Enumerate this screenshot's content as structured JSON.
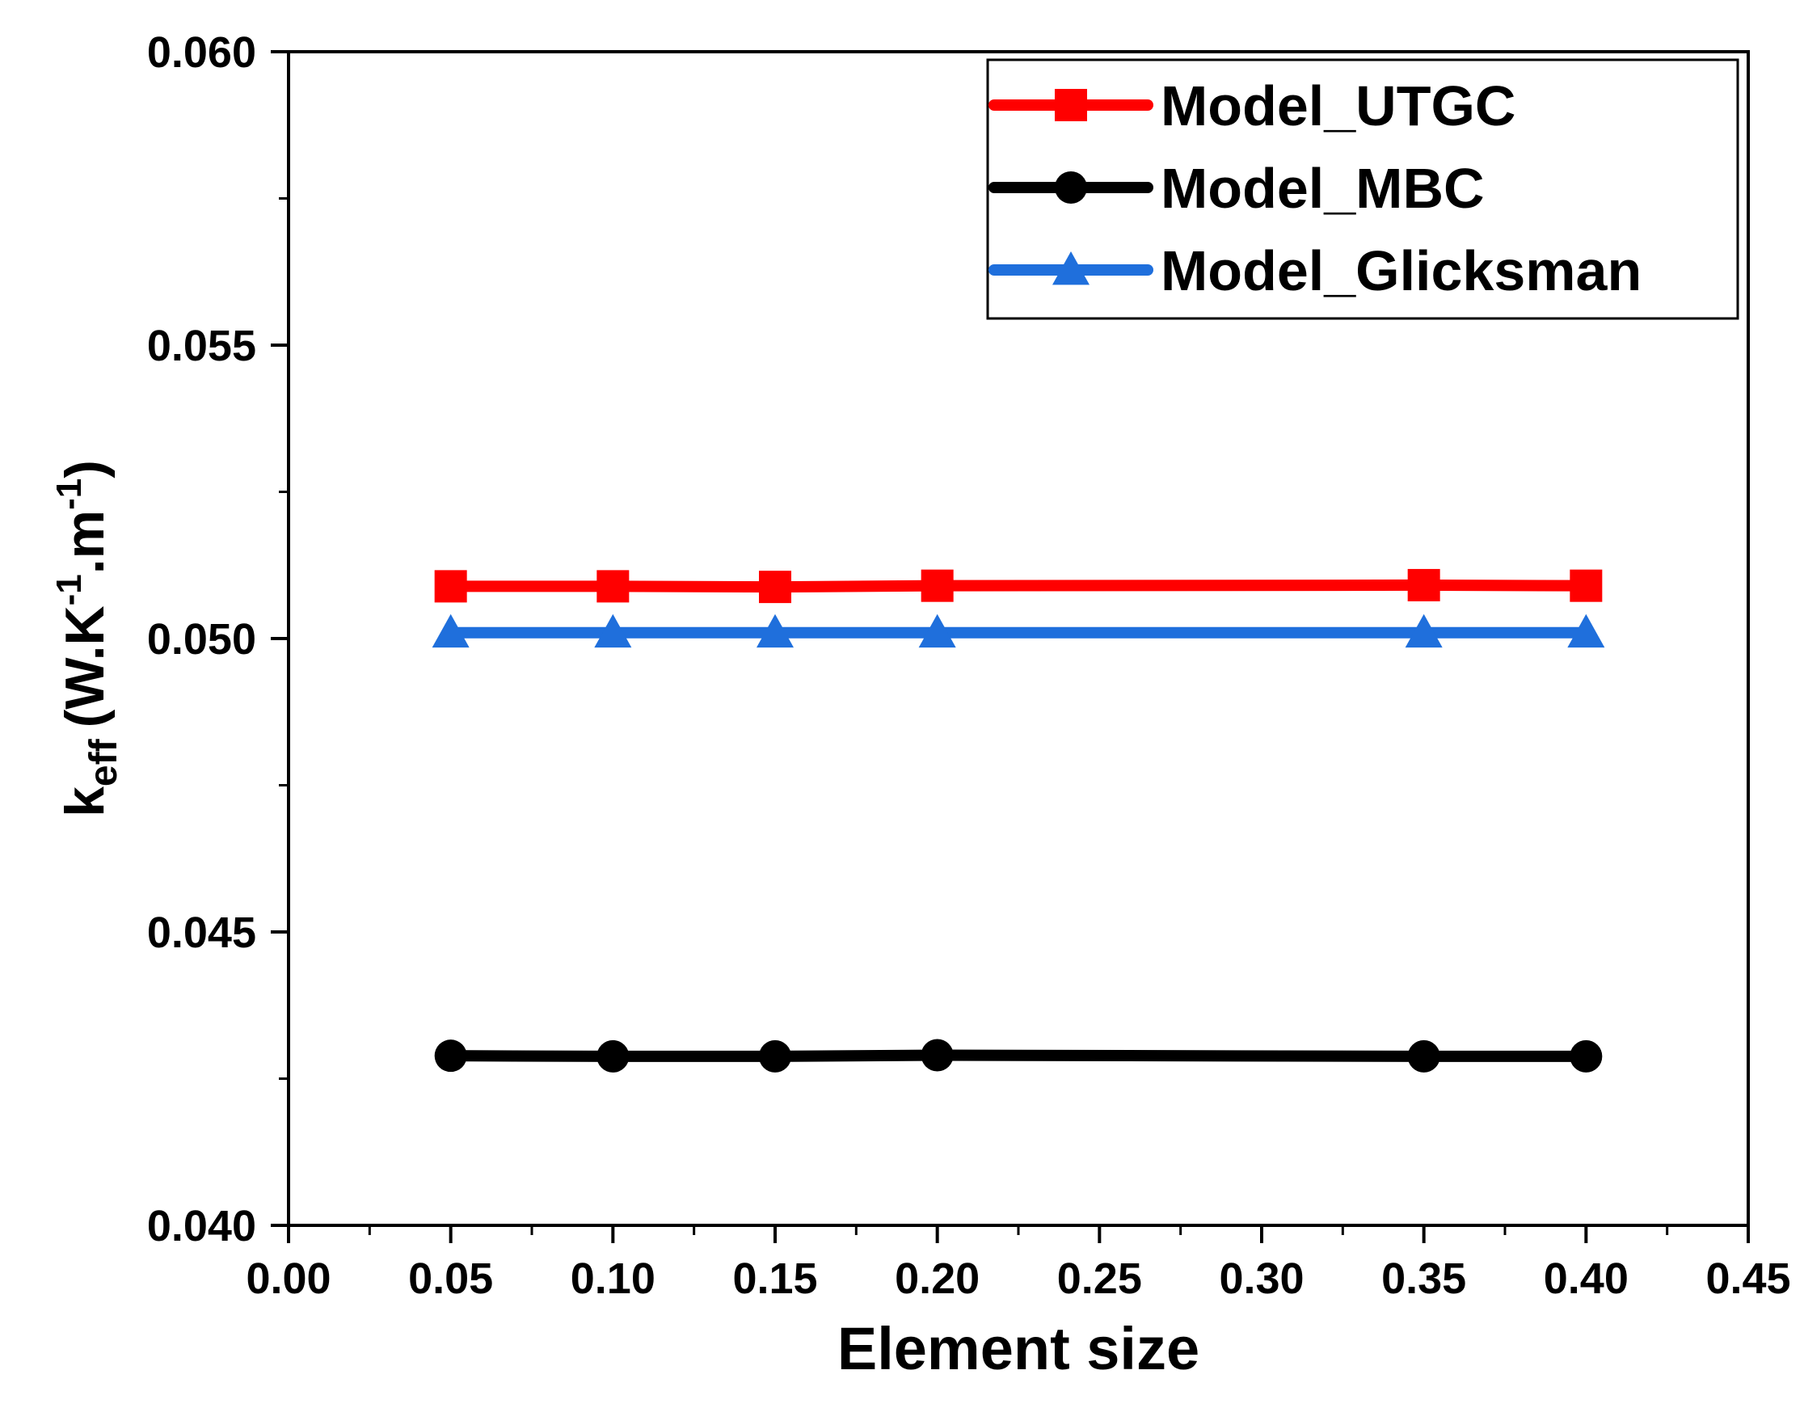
{
  "chart_data": {
    "type": "line",
    "title": "",
    "xlabel": "Element size",
    "ylabel": {
      "symbol": "k",
      "subscript": "eff",
      "units_prefix": "(W.K",
      "exp1": "-1",
      "units_mid": ".m",
      "exp2": "-1",
      "units_suffix": ")"
    },
    "xlim": [
      0.0,
      0.45
    ],
    "ylim": [
      0.04,
      0.06
    ],
    "xticks": [
      "0.00",
      "0.05",
      "0.10",
      "0.15",
      "0.20",
      "0.25",
      "0.30",
      "0.35",
      "0.40",
      "0.45"
    ],
    "yticks": [
      "0.040",
      "0.045",
      "0.050",
      "0.055",
      "0.060"
    ],
    "grid": false,
    "legend_position": "top-right",
    "x": [
      0.05,
      0.1,
      0.15,
      0.2,
      0.35,
      0.4
    ],
    "series": [
      {
        "name": "Model_UTGC",
        "color": "#ff0000",
        "marker": "square",
        "values": [
          0.05089,
          0.05089,
          0.05088,
          0.0509,
          0.05091,
          0.0509
        ]
      },
      {
        "name": "Model_MBC",
        "color": "#000000",
        "marker": "circle",
        "values": [
          0.04289,
          0.04288,
          0.04288,
          0.0429,
          0.04288,
          0.04288
        ]
      },
      {
        "name": "Model_Glicksman",
        "color": "#1f6fdc",
        "marker": "triangle",
        "values": [
          0.0501,
          0.0501,
          0.0501,
          0.0501,
          0.0501,
          0.0501
        ]
      }
    ]
  }
}
